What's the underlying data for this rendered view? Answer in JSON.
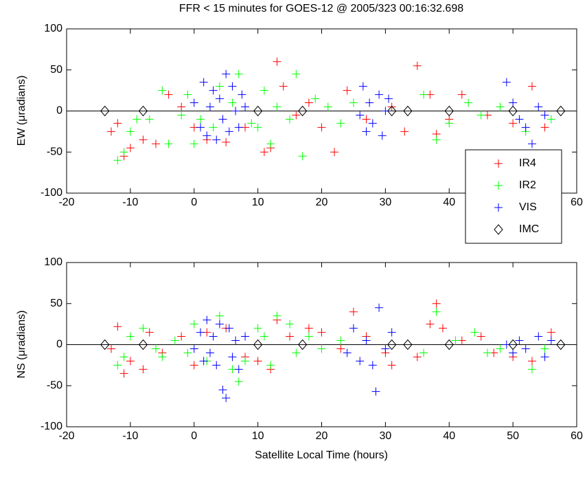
{
  "chart_data": [
    {
      "type": "scatter",
      "title": "FFR < 15 minutes for GOES-12 @ 2005/323 00:16:32.698",
      "ylabel": "EW (μradians)",
      "xlim": [
        -20,
        60
      ],
      "ylim": [
        -100,
        100
      ],
      "xticks": [
        -20,
        -10,
        0,
        10,
        20,
        30,
        40,
        50,
        60
      ],
      "yticks": [
        -100,
        -50,
        0,
        50,
        100
      ],
      "hline": 0,
      "legend": "lower right",
      "series": [
        {
          "name": "IR4",
          "color": "#ff0000",
          "marker": "plus",
          "x": [
            -13,
            -12,
            -11,
            -10,
            -8,
            -6,
            -4,
            -2,
            0,
            2,
            5,
            8,
            11,
            12,
            13,
            14,
            16,
            18,
            20,
            22,
            24,
            27,
            31,
            33,
            35,
            37,
            38,
            40,
            42,
            46,
            50,
            53,
            55
          ],
          "values": [
            -25,
            -15,
            -55,
            -45,
            -35,
            -40,
            20,
            5,
            -20,
            -35,
            -38,
            -20,
            -50,
            -45,
            60,
            30,
            -5,
            10,
            -20,
            -50,
            25,
            -10,
            5,
            -25,
            55,
            20,
            -28,
            -10,
            20,
            -5,
            -15,
            30,
            -20
          ]
        },
        {
          "name": "IR2",
          "color": "#00ff00",
          "marker": "plus",
          "x": [
            -12,
            -11,
            -10,
            -9,
            -7,
            -5,
            -4,
            -2,
            -1,
            0,
            1,
            3,
            4,
            6,
            7,
            9,
            10,
            11,
            12,
            13,
            15,
            16,
            17,
            19,
            21,
            23,
            25,
            36,
            38,
            40,
            43,
            45,
            48,
            52,
            56
          ],
          "values": [
            -60,
            -50,
            -25,
            -10,
            -10,
            25,
            -40,
            -5,
            20,
            -40,
            -10,
            -20,
            30,
            10,
            45,
            -15,
            -20,
            25,
            -40,
            5,
            -10,
            45,
            -55,
            15,
            5,
            -15,
            10,
            20,
            -35,
            -15,
            10,
            -5,
            5,
            -25,
            -10
          ]
        },
        {
          "name": "VIS",
          "color": "#0000ff",
          "marker": "plus",
          "x": [
            0,
            1,
            1.5,
            2,
            2.5,
            3,
            3.5,
            4,
            4.5,
            5,
            5.5,
            6,
            6.5,
            7,
            7.5,
            8,
            26,
            26.5,
            27,
            27.5,
            28,
            29,
            29.5,
            30,
            30.5,
            49,
            50,
            51,
            52,
            53,
            54,
            55
          ],
          "values": [
            10,
            -20,
            35,
            -30,
            5,
            25,
            -35,
            15,
            -10,
            45,
            -25,
            30,
            0,
            -20,
            20,
            5,
            -5,
            30,
            -25,
            10,
            -15,
            20,
            -30,
            0,
            15,
            35,
            10,
            -10,
            -20,
            -40,
            5,
            -5
          ]
        },
        {
          "name": "IMC",
          "color": "#000000",
          "marker": "diamond",
          "x": [
            -14,
            -8,
            10,
            17,
            31,
            33.5,
            40,
            50,
            57.5
          ],
          "values": [
            0,
            0,
            0,
            0,
            0,
            0,
            0,
            0,
            0
          ]
        }
      ]
    },
    {
      "type": "scatter",
      "ylabel": "NS (μradians)",
      "xlabel": "Satellite Local Time (hours)",
      "xlim": [
        -20,
        60
      ],
      "ylim": [
        -100,
        100
      ],
      "xticks": [
        -20,
        -10,
        0,
        10,
        20,
        30,
        40,
        50,
        60
      ],
      "yticks": [
        -100,
        -50,
        0,
        50,
        100
      ],
      "hline": 0,
      "series": [
        {
          "color": "#ff0000",
          "marker": "plus",
          "x": [
            -13,
            -12,
            -11,
            -10,
            -8,
            -7,
            -5,
            -2,
            0,
            2,
            5,
            8,
            10,
            12,
            13,
            15,
            18,
            20,
            23,
            25,
            27,
            30,
            31,
            35,
            37,
            38,
            39,
            42,
            45,
            47,
            50,
            53,
            56
          ],
          "values": [
            -5,
            22,
            -35,
            -20,
            -30,
            15,
            -10,
            10,
            -25,
            15,
            20,
            -15,
            -20,
            -30,
            30,
            10,
            20,
            15,
            -5,
            40,
            10,
            -10,
            -25,
            -15,
            25,
            50,
            20,
            5,
            10,
            -10,
            -15,
            -20,
            15
          ]
        },
        {
          "color": "#00ff00",
          "marker": "plus",
          "x": [
            -12,
            -11,
            -10,
            -8,
            -6,
            -5,
            -3,
            -1,
            0,
            2,
            4,
            6,
            7,
            8,
            10,
            11,
            12,
            13,
            15,
            16,
            18,
            20,
            23,
            36,
            38,
            41,
            44,
            46,
            48,
            53,
            55
          ],
          "values": [
            -25,
            -15,
            10,
            20,
            -5,
            -15,
            5,
            -10,
            25,
            -20,
            35,
            -30,
            -45,
            -20,
            20,
            10,
            -25,
            35,
            25,
            -10,
            10,
            -5,
            5,
            -10,
            40,
            5,
            15,
            -10,
            -5,
            -30,
            -5
          ]
        },
        {
          "color": "#0000ff",
          "marker": "plus",
          "x": [
            0,
            1,
            1.5,
            2,
            2.5,
            3,
            3.5,
            4,
            4.5,
            5,
            5.5,
            6,
            6.5,
            7,
            8,
            24,
            25,
            26,
            27,
            28,
            29,
            28.5,
            30,
            31,
            49,
            50,
            51,
            52,
            54,
            55,
            56
          ],
          "values": [
            -5,
            15,
            -20,
            30,
            -10,
            10,
            -25,
            25,
            -55,
            -65,
            20,
            -15,
            5,
            -30,
            10,
            -10,
            20,
            -20,
            5,
            -25,
            45,
            -57,
            -5,
            15,
            0,
            -10,
            5,
            -5,
            10,
            -15,
            5
          ]
        },
        {
          "color": "#000000",
          "marker": "diamond",
          "x": [
            -14,
            -8,
            10,
            17,
            31,
            33.5,
            40,
            50,
            57.5
          ],
          "values": [
            0,
            0,
            0,
            0,
            0,
            0,
            0,
            0,
            0
          ]
        }
      ]
    }
  ]
}
